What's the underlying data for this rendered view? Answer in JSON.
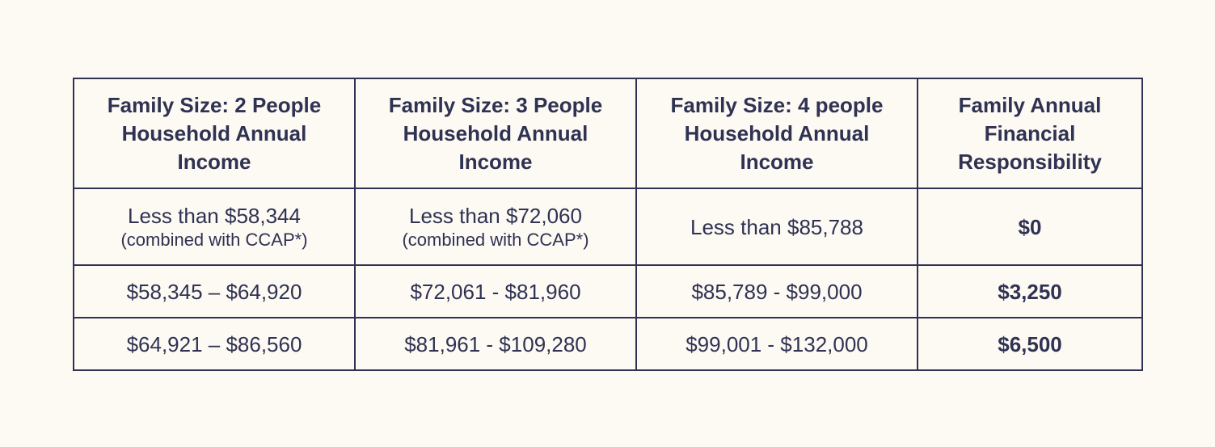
{
  "table": {
    "header": [
      [
        "Family Size: 2 People",
        "Household Annual",
        "Income"
      ],
      [
        "Family Size: 3 People",
        "Household Annual",
        "Income"
      ],
      [
        "Family Size: 4 people",
        "Household Annual",
        "Income"
      ],
      [
        "Family Annual",
        "Financial",
        "Responsibility"
      ]
    ],
    "rows": [
      [
        [
          "Less than $58,344",
          "(combined with CCAP*)"
        ],
        [
          "Less than $72,060",
          "(combined with CCAP*)"
        ],
        [
          "Less than $85,788"
        ],
        [
          "$0"
        ]
      ],
      [
        [
          "$58,345 – $64,920"
        ],
        [
          "$72,061 - $81,960"
        ],
        [
          "$85,789 - $99,000"
        ],
        [
          "$3,250"
        ]
      ],
      [
        [
          "$64,921 – $86,560"
        ],
        [
          "$81,961 - $109,280"
        ],
        [
          "$99,001 - $132,000"
        ],
        [
          "$6,500"
        ]
      ]
    ]
  }
}
